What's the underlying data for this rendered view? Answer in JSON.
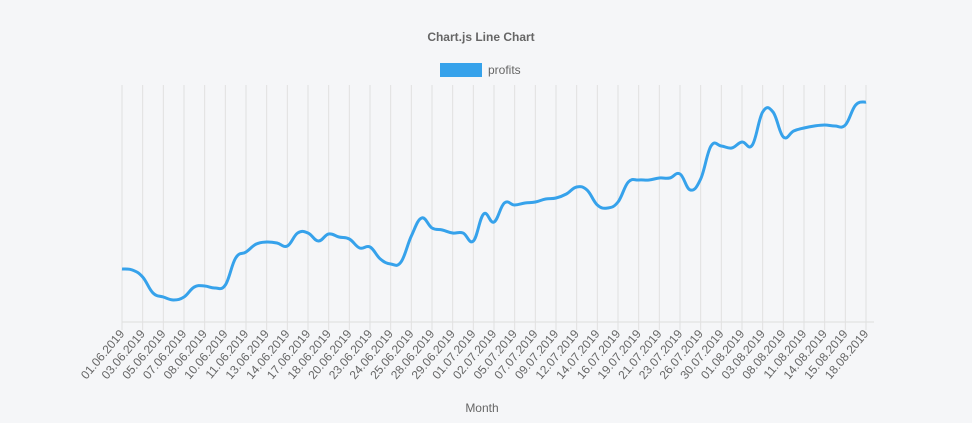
{
  "chart_data": {
    "type": "line",
    "title": "Chart.js Line Chart",
    "x_label": "Month",
    "categories": [
      "01.06.2019",
      null,
      "03.06.2019",
      null,
      "05.06.2019",
      null,
      "07.06.2019",
      null,
      "08.06.2019",
      null,
      "10.06.2019",
      null,
      "11.06.2019",
      null,
      "13.06.2019",
      null,
      "14.06.2019",
      null,
      "17.06.2019",
      null,
      "18.06.2019",
      null,
      "20.06.2019",
      null,
      "23.06.2019",
      null,
      "24.06.2019",
      null,
      "25.06.2019",
      null,
      "28.06.2019",
      null,
      "29.06.2019",
      null,
      "01.07.2019",
      null,
      "02.07.2019",
      null,
      "05.07.2019",
      null,
      "07.07.2019",
      null,
      "09.07.2019",
      null,
      "12.07.2019",
      null,
      "14.07.2019",
      null,
      "16.07.2019",
      null,
      "19.07.2019",
      null,
      "21.07.2019",
      null,
      "23.07.2019",
      null,
      "26.07.2019",
      null,
      "30.07.2019",
      null,
      "01.08.2019",
      null,
      "03.08.2019",
      null,
      "08.08.2019",
      null,
      "11.08.2019",
      null,
      "14.08.2019",
      null,
      "15.08.2019",
      null,
      "18.08.2019"
    ],
    "series": [
      {
        "name": "profits",
        "color": "#36a2eb",
        "values": [
          53,
          52,
          45,
          29,
          25,
          22,
          25,
          35,
          36,
          34,
          37,
          64,
          70,
          78,
          80,
          79,
          76,
          89,
          89,
          81,
          88,
          85,
          83,
          74,
          75,
          63,
          58,
          60,
          86,
          104,
          94,
          92,
          89,
          89,
          81,
          108,
          100,
          119,
          117,
          119,
          120,
          123,
          124,
          128,
          135,
          132,
          117,
          114,
          120,
          140,
          142,
          142,
          144,
          144,
          148,
          132,
          143,
          176,
          176,
          174,
          180,
          177,
          210,
          210,
          185,
          191,
          194,
          196,
          197,
          196,
          197,
          217,
          220
        ]
      }
    ],
    "ylim": [
      0,
      237
    ],
    "grid": true
  }
}
